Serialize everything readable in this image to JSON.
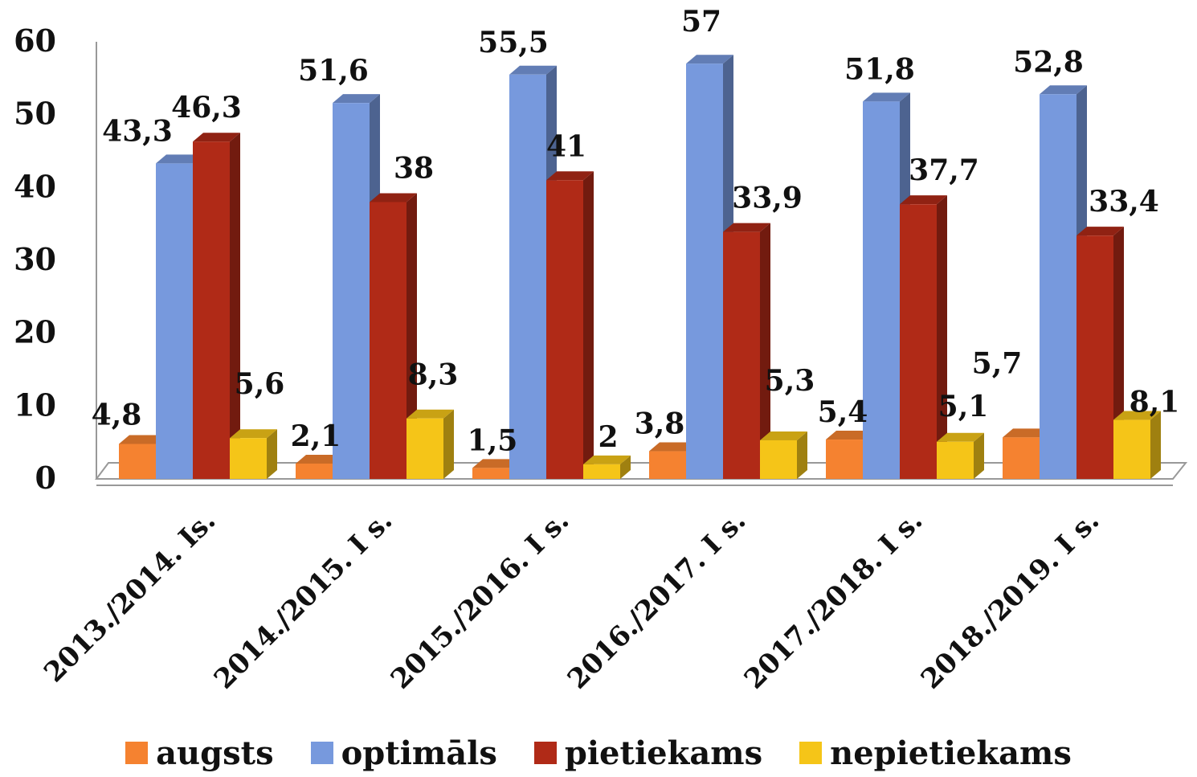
{
  "chart_data": {
    "type": "bar",
    "title": "",
    "xlabel": "",
    "ylabel": "",
    "ylim": [
      0,
      60
    ],
    "yticks": [
      "0",
      "10",
      "20",
      "30",
      "40",
      "50",
      "60"
    ],
    "grid": false,
    "legend_position": "bottom",
    "categories": [
      "2013./2014. Is.",
      "2014./2015. I s.",
      "2015./2016. I s.",
      "2016./2017. I s.",
      "2017./2018. I s.",
      "2018./2019. I s."
    ],
    "series": [
      {
        "name": "augsts",
        "color": "#F58230",
        "values": [
          4.8,
          2.1,
          1.5,
          3.8,
          5.4,
          5.7
        ],
        "labels": [
          "4,8",
          "2,1",
          "1,5",
          "3,8",
          "5,4",
          "5,7"
        ]
      },
      {
        "name": "optimāls",
        "color": "#7799DD",
        "values": [
          43.3,
          51.6,
          55.5,
          57,
          51.8,
          52.8
        ],
        "labels": [
          "43,3",
          "51,6",
          "55,5",
          "57",
          "51,8",
          "52,8"
        ]
      },
      {
        "name": "pietiekams",
        "color": "#B02A17",
        "values": [
          46.3,
          38,
          41,
          33.9,
          37.7,
          33.4
        ],
        "labels": [
          "46,3",
          "38",
          "41",
          "33,9",
          "37,7",
          "33,4"
        ]
      },
      {
        "name": "nepietiekams",
        "color": "#F5C518",
        "values": [
          5.6,
          8.3,
          2,
          5.3,
          5.1,
          8.1
        ],
        "labels": [
          "5,6",
          "8,3",
          "2",
          "5,3",
          "5,1",
          "8,1"
        ]
      }
    ]
  }
}
